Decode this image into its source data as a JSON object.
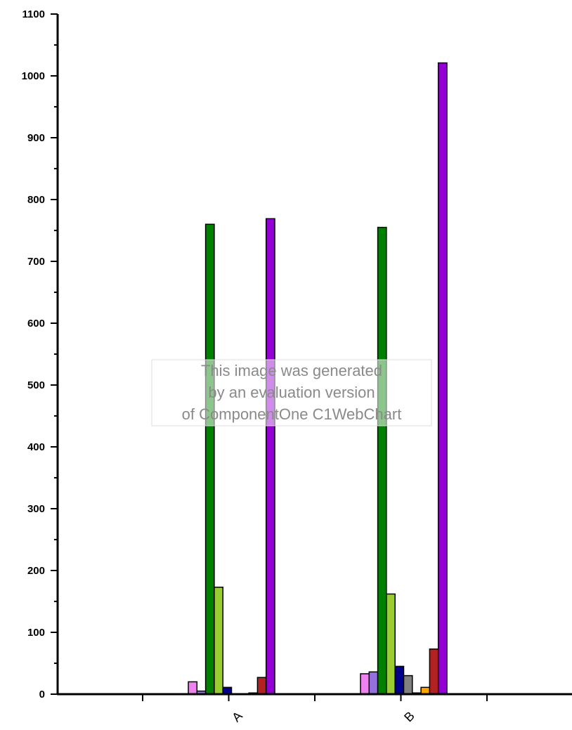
{
  "chart_data": {
    "type": "bar",
    "categories": [
      "A",
      "B"
    ],
    "series": [
      {
        "color": "#ee82ee",
        "values": [
          20,
          33
        ]
      },
      {
        "color": "#9370db",
        "values": [
          5,
          36
        ]
      },
      {
        "color": "#008000",
        "values": [
          760,
          755
        ]
      },
      {
        "color": "#9acd32",
        "values": [
          173,
          162
        ]
      },
      {
        "color": "#00008b",
        "values": [
          11,
          45
        ]
      },
      {
        "color": "#808080",
        "values": [
          0,
          30
        ]
      },
      {
        "color": "#00bfff",
        "values": [
          0,
          2
        ]
      },
      {
        "color": "#ffa500",
        "values": [
          2,
          11
        ]
      },
      {
        "color": "#b22222",
        "values": [
          27,
          73
        ]
      },
      {
        "color": "#9400d3",
        "values": [
          769,
          1021
        ]
      }
    ],
    "ylim": [
      0,
      1100
    ],
    "ytick_step": 100,
    "yticks": [
      "0",
      "100",
      "200",
      "300",
      "400",
      "500",
      "600",
      "700",
      "800",
      "900",
      "1000",
      "1100"
    ],
    "grid": false,
    "legend": "none"
  },
  "watermark": {
    "line1": "This image was generated",
    "line2": "by an evaluation version",
    "line3": "of ComponentOne C1WebChart"
  }
}
